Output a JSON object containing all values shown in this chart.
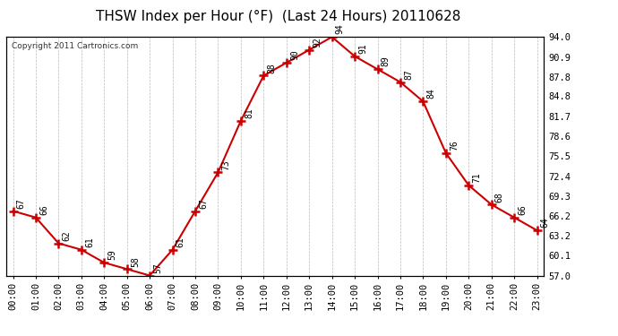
{
  "title": "THSW Index per Hour (°F)  (Last 24 Hours) 20110628",
  "copyright": "Copyright 2011 Cartronics.com",
  "hours": [
    "00:00",
    "01:00",
    "02:00",
    "03:00",
    "04:00",
    "05:00",
    "06:00",
    "07:00",
    "08:00",
    "09:00",
    "10:00",
    "11:00",
    "12:00",
    "13:00",
    "14:00",
    "15:00",
    "16:00",
    "17:00",
    "18:00",
    "19:00",
    "20:00",
    "21:00",
    "22:00",
    "23:00"
  ],
  "values": [
    67,
    66,
    62,
    61,
    59,
    58,
    57,
    61,
    67,
    73,
    81,
    88,
    90,
    92,
    94,
    91,
    89,
    87,
    84,
    76,
    71,
    68,
    66,
    64
  ],
  "ylim_min": 57.0,
  "ylim_max": 94.0,
  "yticks": [
    57.0,
    60.1,
    63.2,
    66.2,
    69.3,
    72.4,
    75.5,
    78.6,
    81.7,
    84.8,
    87.8,
    90.9,
    94.0
  ],
  "line_color": "#cc0000",
  "marker_color": "#cc0000",
  "bg_color": "#ffffff",
  "grid_color": "#bbbbbb",
  "label_color": "#000000",
  "title_fontsize": 11,
  "label_fontsize": 7,
  "tick_fontsize": 7.5,
  "copyright_fontsize": 6.5
}
